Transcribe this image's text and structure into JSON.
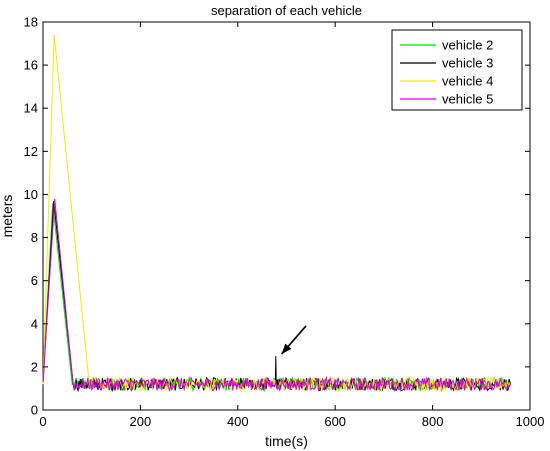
{
  "chart_data": {
    "type": "line",
    "title": "separation of each vehicle",
    "xlabel": "time(s)",
    "ylabel": "meters",
    "xlim": [
      0,
      1000
    ],
    "ylim": [
      0,
      18
    ],
    "xticks": [
      0,
      200,
      400,
      600,
      800,
      1000
    ],
    "yticks": [
      0,
      2,
      4,
      6,
      8,
      10,
      12,
      14,
      16,
      18
    ],
    "grid": false,
    "legend_position": "top-right",
    "series": [
      {
        "name": "vehicle 2",
        "color": "#00dd00",
        "x": [
          0,
          20,
          60,
          960
        ],
        "y": [
          1.2,
          9.6,
          1.2,
          1.2
        ]
      },
      {
        "name": "vehicle 3",
        "color": "#000000",
        "x": [
          0,
          22,
          62,
          477,
          478,
          479,
          960
        ],
        "y": [
          1.2,
          9.7,
          1.2,
          1.2,
          2.5,
          1.2,
          1.2
        ]
      },
      {
        "name": "vehicle 4",
        "color": "#eeee00",
        "x": [
          0,
          23,
          95,
          960
        ],
        "y": [
          1.2,
          17.4,
          1.2,
          1.2
        ]
      },
      {
        "name": "vehicle 5",
        "color": "#dd00dd",
        "x": [
          0,
          24,
          62,
          960
        ],
        "y": [
          1.3,
          9.8,
          1.2,
          1.2
        ]
      }
    ],
    "noise_band": [
      0.9,
      1.5
    ],
    "annotations": [
      {
        "type": "arrow",
        "from": [
          540,
          3.9
        ],
        "to": [
          490,
          2.6
        ]
      }
    ]
  }
}
